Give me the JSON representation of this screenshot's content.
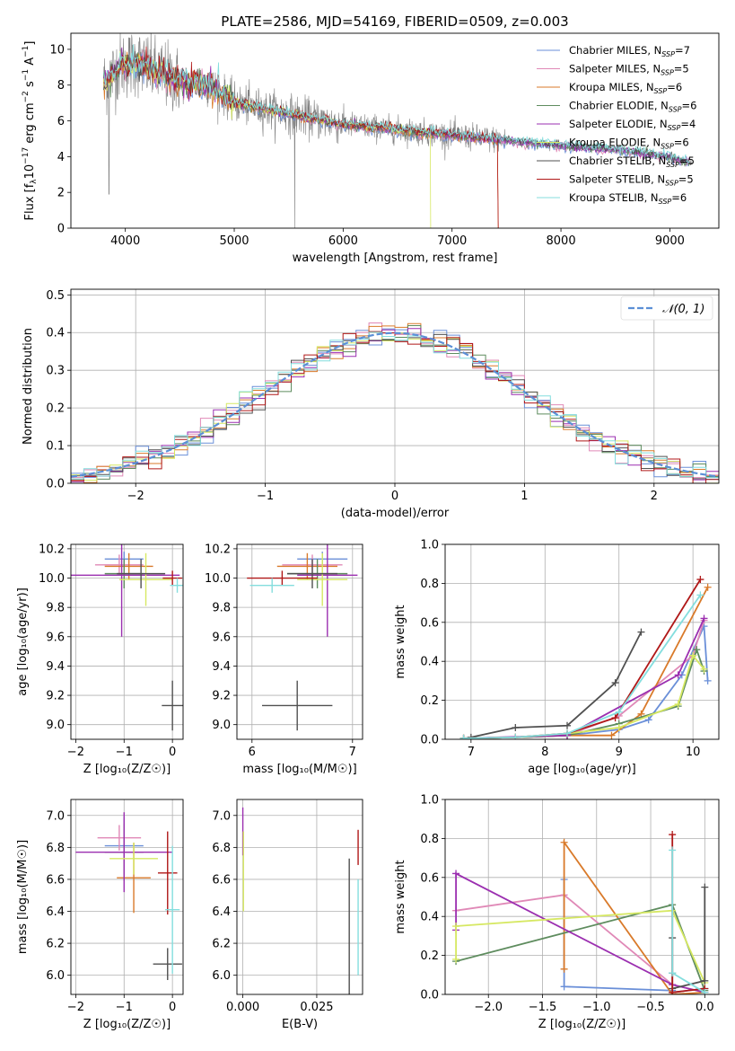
{
  "colors": {
    "chabrier_miles": "#6a8fd8",
    "salpeter_miles": "#e089b7",
    "kroupa_miles": "#d97a2a",
    "chabrier_elodie": "#5e8c5e",
    "salpeter_elodie": "#9b2fb0",
    "kroupa_elodie": "#d6e862",
    "chabrier_stelib": "#505050",
    "salpeter_stelib": "#b01818",
    "kroupa_stelib": "#84dede",
    "normal": "#5b8fd6",
    "data": "#808080"
  },
  "chart_data": [
    {
      "id": "spectrum",
      "type": "line",
      "title": "PLATE=2586, MJD=54169, FIBERID=0509, z=0.003",
      "xlabel": "wavelength [Angstrom, rest frame]",
      "ylabel": "Flux [f_λ 10^-17 erg cm^-2 s^-1 A^-1]",
      "ylabel_parts": {
        "a": "Flux [f",
        "b": "λ",
        "c": "10",
        "d": "−17",
        "e": " erg cm",
        "f": "−2",
        "g": " s",
        "h": "−1",
        "i": " A",
        "j": "−1",
        "k": "]"
      },
      "xlim": [
        3500,
        9450
      ],
      "ylim": [
        0,
        10.9
      ],
      "xticks": [
        4000,
        5000,
        6000,
        7000,
        8000,
        9000
      ],
      "yticks": [
        0,
        2,
        4,
        6,
        8,
        10
      ],
      "continuum": [
        [
          3800,
          8.1
        ],
        [
          3950,
          9.1
        ],
        [
          4100,
          9.3
        ],
        [
          4300,
          8.7
        ],
        [
          4500,
          8.2
        ],
        [
          4800,
          7.9
        ],
        [
          5000,
          7.0
        ],
        [
          5500,
          6.4
        ],
        [
          6000,
          5.8
        ],
        [
          6500,
          5.5
        ],
        [
          7000,
          5.2
        ],
        [
          7500,
          4.9
        ],
        [
          8000,
          4.6
        ],
        [
          8500,
          4.4
        ],
        [
          9000,
          4.0
        ],
        [
          9150,
          3.7
        ]
      ],
      "legend": [
        {
          "name": "Chabrier MILES, N",
          "sub": "SSP",
          "eq": "=7",
          "color_key": "chabrier_miles"
        },
        {
          "name": "Salpeter MILES, N",
          "sub": "SSP",
          "eq": "=5",
          "color_key": "salpeter_miles"
        },
        {
          "name": "Kroupa MILES, N",
          "sub": "SSP",
          "eq": "=6",
          "color_key": "kroupa_miles"
        },
        {
          "name": "Chabrier ELODIE, N",
          "sub": "SSP",
          "eq": "=6",
          "color_key": "chabrier_elodie"
        },
        {
          "name": "Salpeter ELODIE, N",
          "sub": "SSP",
          "eq": "=4",
          "color_key": "salpeter_elodie"
        },
        {
          "name": "Kroupa ELODIE, N",
          "sub": "SSP",
          "eq": "=6",
          "color_key": "kroupa_elodie"
        },
        {
          "name": "Chabrier STELIB, N",
          "sub": "SSP",
          "eq": "=5",
          "color_key": "chabrier_stelib"
        },
        {
          "name": "Salpeter STELIB, N",
          "sub": "SSP",
          "eq": "=5",
          "color_key": "salpeter_stelib"
        },
        {
          "name": "Kroupa STELIB, N",
          "sub": "SSP",
          "eq": "=6",
          "color_key": "kroupa_stelib"
        }
      ],
      "legend_position": "top-right"
    },
    {
      "id": "residuals",
      "type": "line",
      "xlabel": "(data-model)/error",
      "ylabel": "Normed distribution",
      "xlim": [
        -2.5,
        2.5
      ],
      "ylim": [
        0,
        0.515
      ],
      "xticks": [
        -2,
        -1,
        0,
        1,
        2
      ],
      "yticks": [
        0.0,
        0.1,
        0.2,
        0.3,
        0.4,
        0.5
      ],
      "grid": true,
      "hist_bins": [
        -2.5,
        2.5,
        0.1
      ],
      "legend": [
        {
          "name": "𝒩(0, 1)",
          "color_key": "normal",
          "style": "dashed"
        }
      ],
      "legend_position": "top-right"
    },
    {
      "id": "age_vs_Z",
      "type": "scatter",
      "xlabel": "Z [log₁₀(Z/Z☉)]",
      "ylabel": "age  [log₁₀(age/yr)]",
      "xlim": [
        -2.1,
        0.22
      ],
      "ylim": [
        8.9,
        10.23
      ],
      "xticks": [
        -2,
        -1,
        0
      ],
      "yticks": [
        9.0,
        9.2,
        9.4,
        9.6,
        9.8,
        10.0,
        10.2
      ],
      "grid": true,
      "points": [
        {
          "model": "chabrier_miles",
          "x": -1.0,
          "xerr": 0.4,
          "y": 10.13,
          "yerr": 0.05
        },
        {
          "model": "salpeter_miles",
          "x": -1.1,
          "xerr": 0.5,
          "y": 10.09,
          "yerr": 0.07
        },
        {
          "model": "kroupa_miles",
          "x": -0.9,
          "xerr": 0.5,
          "y": 10.08,
          "yerr": 0.09
        },
        {
          "model": "chabrier_elodie",
          "x": -1.0,
          "xerr": 0.4,
          "y": 10.03,
          "yerr": 0.1
        },
        {
          "model": "salpeter_elodie",
          "x": -1.05,
          "xerr": 1.2,
          "y": 10.02,
          "yerr": 0.42
        },
        {
          "model": "kroupa_elodie",
          "x": -0.55,
          "xerr": 0.55,
          "y": 9.99,
          "yerr": 0.18
        },
        {
          "model": "chabrier_stelib",
          "x": -0.65,
          "xerr": 0.5,
          "y": 10.03,
          "yerr": 0.1
        },
        {
          "model": "salpeter_stelib",
          "x": 0.0,
          "xerr": 0.2,
          "y": 10.0,
          "yerr": 0.05
        },
        {
          "model": "kroupa_stelib",
          "x": 0.1,
          "xerr": 0.15,
          "y": 9.95,
          "yerr": 0.05
        },
        {
          "model": "chabrier_stelib",
          "x": 0.0,
          "xerr": 0.22,
          "y": 9.13,
          "yerr": 0.17
        }
      ]
    },
    {
      "id": "age_vs_mass",
      "type": "scatter",
      "xlabel": "mass [log₁₀(M/M☉)]",
      "ylabel": "",
      "xlim": [
        5.85,
        7.1
      ],
      "ylim": [
        8.9,
        10.23
      ],
      "xticks": [
        6,
        7
      ],
      "yticks": [
        9.0,
        9.2,
        9.4,
        9.6,
        9.8,
        10.0,
        10.2
      ],
      "grid": true,
      "points": [
        {
          "model": "chabrier_miles",
          "x": 6.7,
          "xerr": 0.25,
          "y": 10.13,
          "yerr": 0.05
        },
        {
          "model": "salpeter_miles",
          "x": 6.6,
          "xerr": 0.3,
          "y": 10.09,
          "yerr": 0.07
        },
        {
          "model": "kroupa_miles",
          "x": 6.55,
          "xerr": 0.3,
          "y": 10.08,
          "yerr": 0.09
        },
        {
          "model": "chabrier_elodie",
          "x": 6.65,
          "xerr": 0.3,
          "y": 10.03,
          "yerr": 0.1
        },
        {
          "model": "salpeter_elodie",
          "x": 6.75,
          "xerr": 0.3,
          "y": 10.02,
          "yerr": 0.42
        },
        {
          "model": "kroupa_elodie",
          "x": 6.7,
          "xerr": 0.25,
          "y": 9.99,
          "yerr": 0.18
        },
        {
          "model": "chabrier_stelib",
          "x": 6.6,
          "xerr": 0.25,
          "y": 10.03,
          "yerr": 0.1
        },
        {
          "model": "salpeter_stelib",
          "x": 6.3,
          "xerr": 0.35,
          "y": 10.0,
          "yerr": 0.05
        },
        {
          "model": "kroupa_stelib",
          "x": 6.2,
          "xerr": 0.22,
          "y": 9.95,
          "yerr": 0.05
        },
        {
          "model": "chabrier_stelib",
          "x": 6.45,
          "xerr": 0.35,
          "y": 9.13,
          "yerr": 0.17
        }
      ]
    },
    {
      "id": "weight_vs_age",
      "type": "line",
      "xlabel": "age  [log₁₀(age/yr)]",
      "ylabel": "mass weight",
      "xlim": [
        6.65,
        10.35
      ],
      "ylim": [
        0,
        1
      ],
      "xticks": [
        7,
        8,
        9,
        10
      ],
      "yticks": [
        0.0,
        0.2,
        0.4,
        0.6,
        0.8,
        1.0
      ],
      "grid": true,
      "series": [
        {
          "model": "chabrier_miles",
          "x": [
            6.9,
            7.6,
            8.3,
            9.0,
            9.4,
            9.85,
            10.15,
            10.2
          ],
          "y": [
            0.005,
            0.01,
            0.02,
            0.05,
            0.1,
            0.33,
            0.58,
            0.3
          ]
        },
        {
          "model": "salpeter_miles",
          "x": [
            6.9,
            7.6,
            8.3,
            9.0,
            10.0,
            10.15
          ],
          "y": [
            0.005,
            0.01,
            0.02,
            0.12,
            0.43,
            0.61
          ]
        },
        {
          "model": "kroupa_miles",
          "x": [
            6.9,
            7.6,
            8.3,
            8.9,
            9.3,
            10.2
          ],
          "y": [
            0.005,
            0.01,
            0.02,
            0.02,
            0.13,
            0.78
          ]
        },
        {
          "model": "chabrier_elodie",
          "x": [
            6.9,
            7.6,
            8.3,
            9.0,
            9.8,
            10.05,
            10.15
          ],
          "y": [
            0.005,
            0.01,
            0.02,
            0.08,
            0.17,
            0.46,
            0.35
          ]
        },
        {
          "model": "salpeter_elodie",
          "x": [
            6.9,
            8.3,
            9.8,
            10.15
          ],
          "y": [
            0.005,
            0.02,
            0.33,
            0.62
          ]
        },
        {
          "model": "kroupa_elodie",
          "x": [
            6.9,
            7.6,
            8.3,
            9.0,
            9.8,
            10.0,
            10.15
          ],
          "y": [
            0.005,
            0.01,
            0.03,
            0.06,
            0.18,
            0.43,
            0.36
          ]
        },
        {
          "model": "chabrier_stelib",
          "x": [
            7.0,
            7.6,
            8.3,
            8.95,
            9.3
          ],
          "y": [
            0.01,
            0.06,
            0.07,
            0.29,
            0.55
          ]
        },
        {
          "model": "salpeter_stelib",
          "x": [
            6.9,
            7.6,
            8.3,
            8.95,
            10.1
          ],
          "y": [
            0.005,
            0.01,
            0.03,
            0.11,
            0.82
          ]
        },
        {
          "model": "kroupa_stelib",
          "x": [
            6.9,
            7.6,
            8.3,
            9.0,
            10.1
          ],
          "y": [
            0.005,
            0.01,
            0.03,
            0.14,
            0.74
          ]
        }
      ]
    },
    {
      "id": "mass_vs_Z",
      "type": "scatter",
      "xlabel": "Z [log₁₀(Z/Z☉)]",
      "ylabel": "mass [log₁₀(M/M☉)]",
      "xlim": [
        -2.1,
        0.22
      ],
      "ylim": [
        5.88,
        7.1
      ],
      "xticks": [
        -2,
        -1,
        0
      ],
      "yticks": [
        6.0,
        6.2,
        6.4,
        6.6,
        6.8,
        7.0
      ],
      "grid": true,
      "points": [
        {
          "model": "chabrier_miles",
          "x": -1.0,
          "xerr": 0.4,
          "y": 6.81,
          "yerr": 0.18
        },
        {
          "model": "salpeter_miles",
          "x": -1.1,
          "xerr": 0.45,
          "y": 6.86,
          "yerr": 0.08
        },
        {
          "model": "kroupa_miles",
          "x": -0.8,
          "xerr": 0.35,
          "y": 6.61,
          "yerr": 0.22
        },
        {
          "model": "chabrier_elodie",
          "x": -1.0,
          "xerr": 0.4,
          "y": 6.77,
          "yerr": 0.18
        },
        {
          "model": "salpeter_elodie",
          "x": -1.0,
          "xerr": 1.0,
          "y": 6.77,
          "yerr": 0.25
        },
        {
          "model": "kroupa_elodie",
          "x": -0.8,
          "xerr": 0.5,
          "y": 6.73,
          "yerr": 0.1
        },
        {
          "model": "chabrier_stelib",
          "x": -0.1,
          "xerr": 0.3,
          "y": 6.07,
          "yerr": 0.1
        },
        {
          "model": "salpeter_stelib",
          "x": -0.1,
          "xerr": 0.2,
          "y": 6.64,
          "yerr": 0.26
        },
        {
          "model": "kroupa_stelib",
          "x": 0.0,
          "xerr": 0.15,
          "y": 6.41,
          "yerr": 0.4
        }
      ]
    },
    {
      "id": "mass_vs_ebv",
      "type": "scatter",
      "xlabel": "E(B-V)",
      "ylabel": "",
      "xlim": [
        -0.002,
        0.0405
      ],
      "ylim": [
        5.88,
        7.1
      ],
      "xticks": [
        0.0,
        0.025
      ],
      "xtick_labels": [
        "0.000",
        "0.025"
      ],
      "yticks": [
        6.0,
        6.2,
        6.4,
        6.6,
        6.8,
        7.0
      ],
      "grid": true,
      "points": [
        {
          "model": "salpeter_elodie",
          "x": 0.0,
          "y": 6.9,
          "yerr": 0.15
        },
        {
          "model": "kroupa_elodie",
          "x": 0.0002,
          "y": 6.65,
          "yerr": 0.25
        },
        {
          "model": "chabrier_stelib",
          "x": 0.036,
          "y": 6.25,
          "yerr": 0.48
        },
        {
          "model": "salpeter_stelib",
          "x": 0.039,
          "y": 6.8,
          "yerr": 0.11
        },
        {
          "model": "kroupa_stelib",
          "x": 0.039,
          "y": 6.3,
          "yerr": 0.3
        }
      ]
    },
    {
      "id": "weight_vs_Z",
      "type": "line",
      "xlabel": "Z [log₁₀(Z/Z☉)]",
      "ylabel": "mass weight",
      "xlim": [
        -2.4,
        0.13
      ],
      "ylim": [
        0,
        1
      ],
      "xticks": [
        -2.0,
        -1.5,
        -1.0,
        -0.5,
        0.0
      ],
      "xtick_labels": [
        "−2.0",
        "−1.5",
        "−1.0",
        "−0.5",
        "0.0"
      ],
      "yticks": [
        0.0,
        0.2,
        0.4,
        0.6,
        0.8,
        1.0
      ],
      "grid": true,
      "series": [
        {
          "model": "chabrier_miles",
          "x": [
            -1.3,
            -1.3,
            -0.3,
            -0.3,
            0.0
          ],
          "y": [
            0.59,
            0.04,
            0.02,
            0.01,
            0.03
          ]
        },
        {
          "model": "salpeter_miles",
          "x": [
            -2.3,
            -1.3,
            -0.3,
            0.0
          ],
          "y": [
            0.43,
            0.51,
            0.05,
            0.01
          ]
        },
        {
          "model": "kroupa_miles",
          "x": [
            -1.3,
            -1.3,
            -0.3,
            0.0
          ],
          "y": [
            0.13,
            0.78,
            0.0,
            0.01
          ]
        },
        {
          "model": "chabrier_elodie",
          "x": [
            -2.3,
            -0.3,
            0.0
          ],
          "y": [
            0.17,
            0.46,
            0.02
          ]
        },
        {
          "model": "salpeter_elodie",
          "x": [
            -2.3,
            -2.3,
            -0.3,
            0.0
          ],
          "y": [
            0.33,
            0.62,
            0.05,
            0.01
          ]
        },
        {
          "model": "kroupa_elodie",
          "x": [
            -2.3,
            -2.3,
            -0.3,
            0.0
          ],
          "y": [
            0.18,
            0.35,
            0.43,
            0.06
          ]
        },
        {
          "model": "chabrier_stelib",
          "x": [
            -0.3,
            -0.3,
            -0.3,
            0.0,
            0.0
          ],
          "y": [
            0.29,
            0.11,
            0.03,
            0.07,
            0.55
          ]
        },
        {
          "model": "salpeter_stelib",
          "x": [
            -0.3,
            -0.3,
            0.0
          ],
          "y": [
            0.82,
            0.01,
            0.03
          ]
        },
        {
          "model": "kroupa_stelib",
          "x": [
            -0.3,
            -0.3,
            0.0
          ],
          "y": [
            0.74,
            0.11,
            0.01
          ]
        }
      ]
    }
  ]
}
